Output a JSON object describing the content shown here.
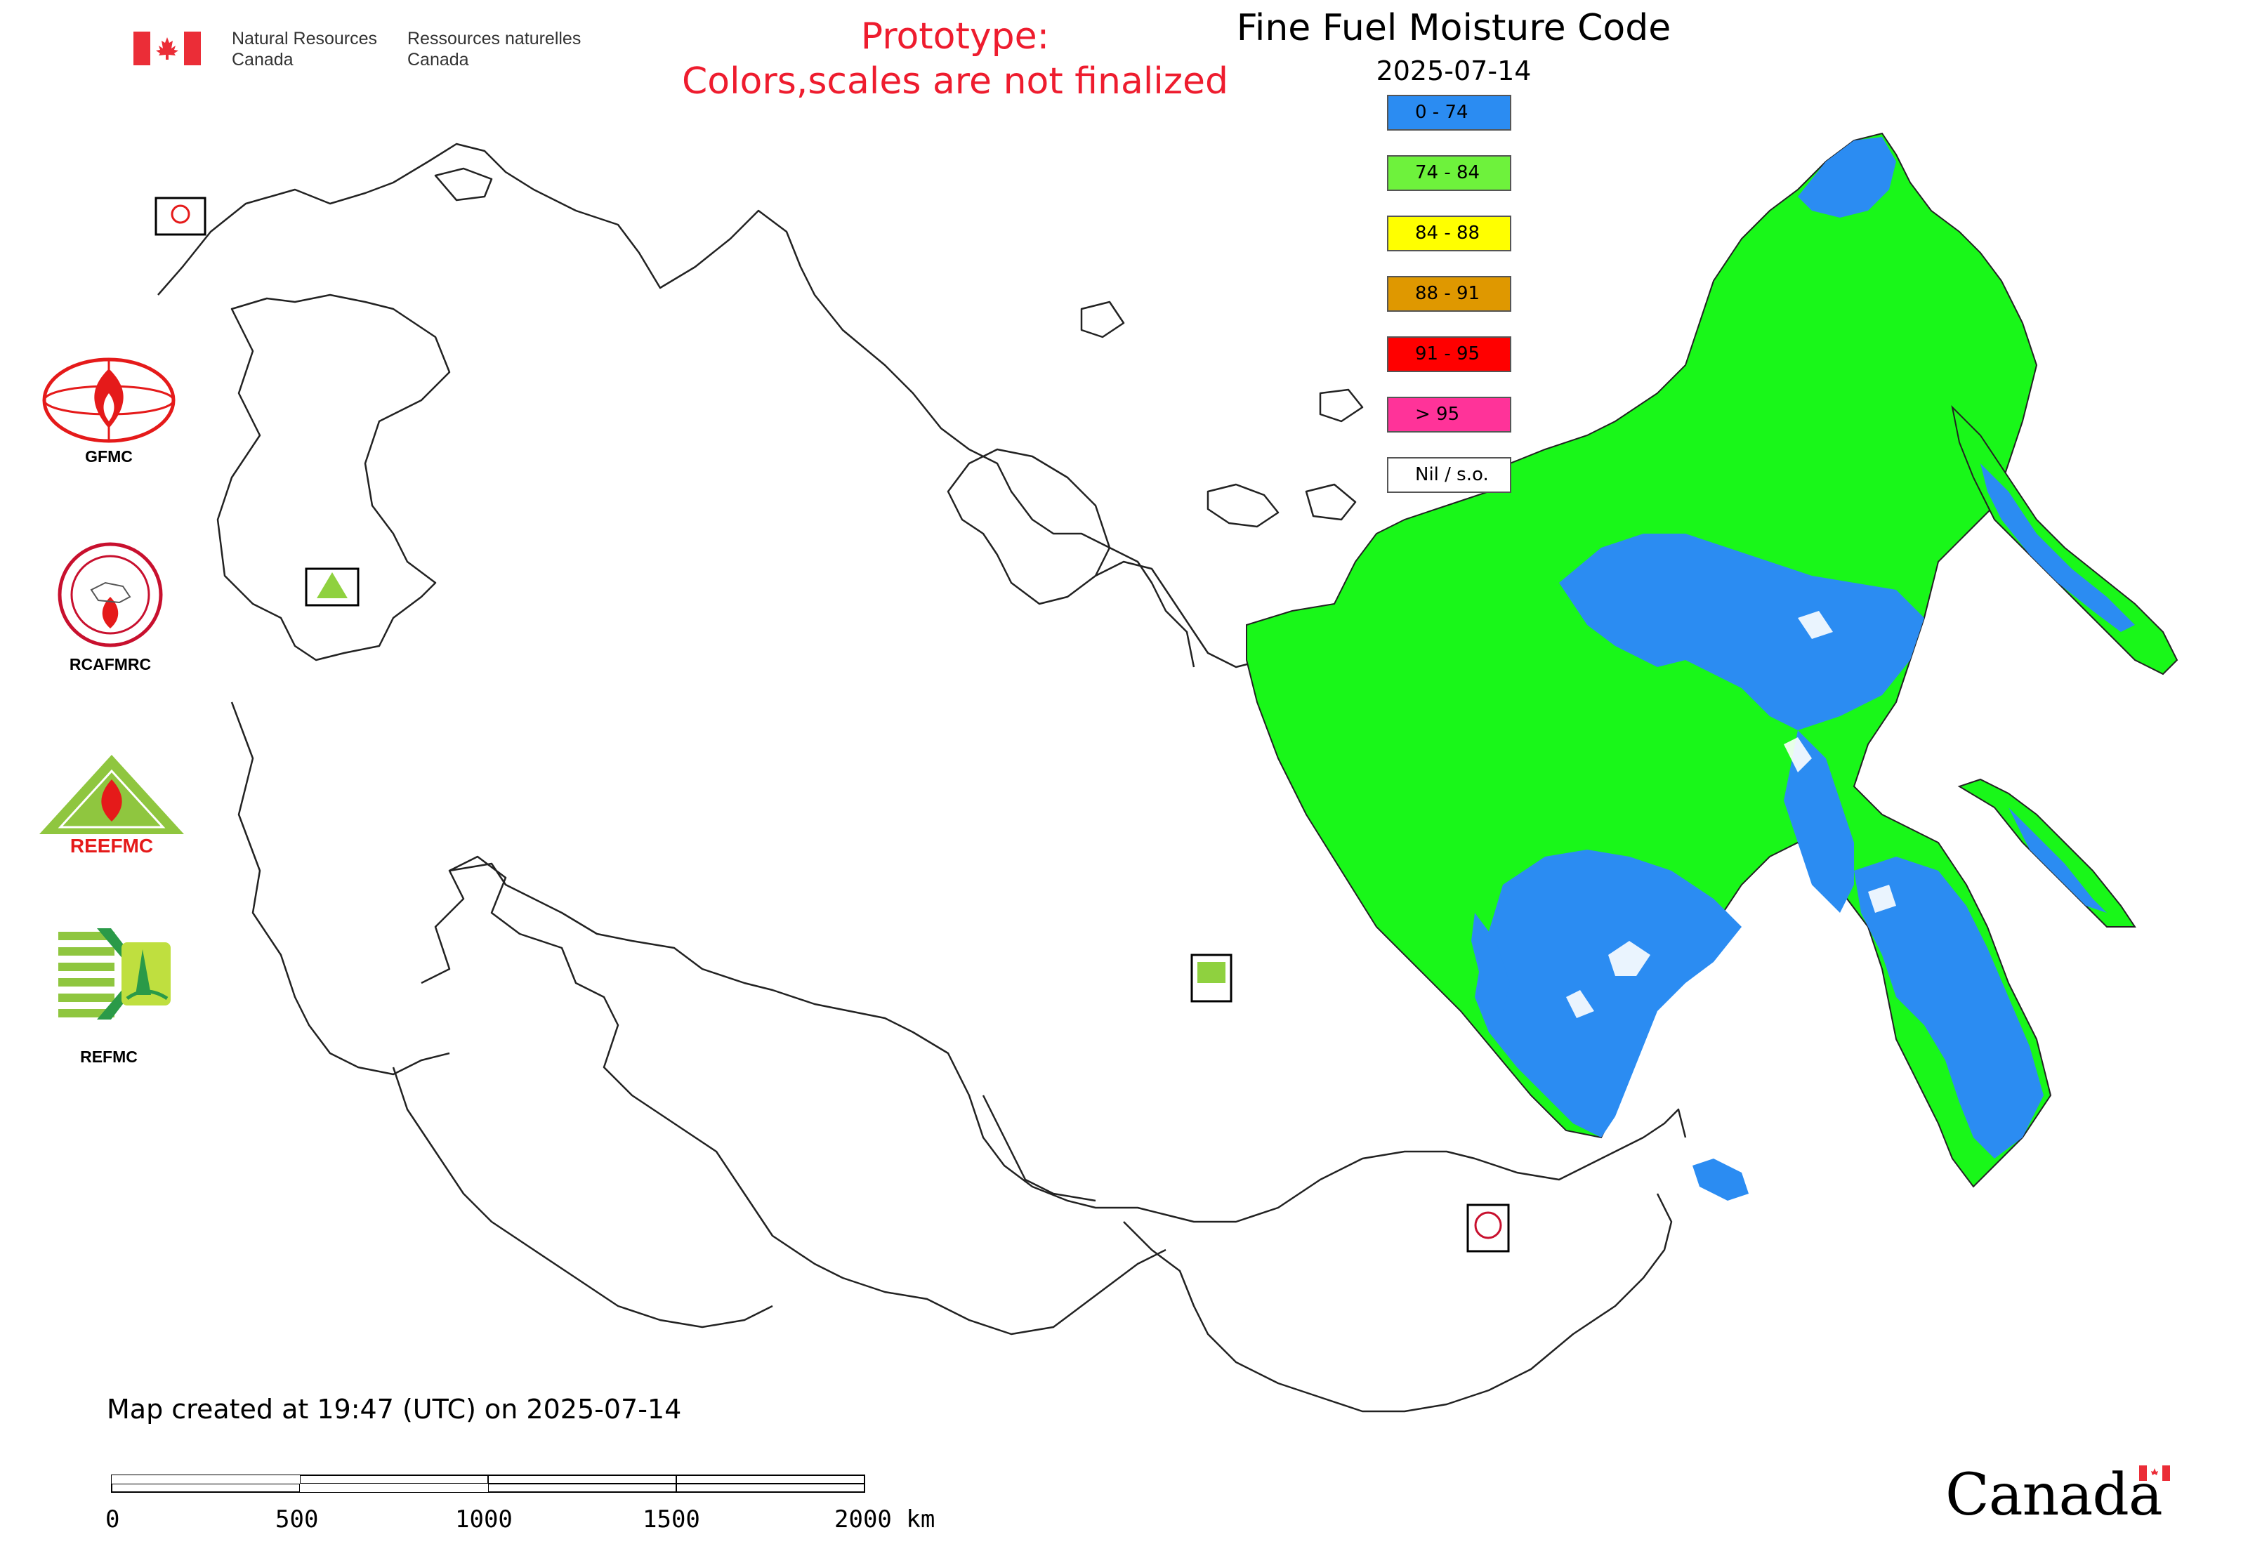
{
  "header": {
    "dept_en_line1": "Natural Resources",
    "dept_en_line2": "Canada",
    "dept_fr_line1": "Ressources naturelles",
    "dept_fr_line2": "Canada",
    "prototype_line1": "Prototype:",
    "prototype_line2": "Colors,scales are not finalized"
  },
  "map": {
    "title": "Fine Fuel Moisture Code",
    "date": "2025-07-14",
    "created_note": "Map created at 19:47 (UTC) on 2025-07-14"
  },
  "legend": [
    {
      "label": "0 - 74",
      "color": "#2b8cf2"
    },
    {
      "label": "74 - 84",
      "color": "#6ef23c"
    },
    {
      "label": "84 - 88",
      "color": "#ffff00"
    },
    {
      "label": "88 - 91",
      "color": "#df9800"
    },
    {
      "label": "91 - 95",
      "color": "#ff0000"
    },
    {
      "label": "> 95",
      "color": "#ff3399"
    },
    {
      "label": "Nil / s.o.",
      "color": "#ffffff"
    }
  ],
  "logos": {
    "gfmc": "GFMC",
    "rcafmrc": "RCAFMRC",
    "reefmc": "REEFMC",
    "refmc": "REFMC"
  },
  "scale": {
    "ticks": [
      "0",
      "500",
      "1000",
      "1500",
      "2000 km"
    ]
  },
  "footer": {
    "wordmark": "Canada"
  },
  "colors": {
    "moist": "#2b8cf2",
    "moderate": "#19f719",
    "outline": "#222222",
    "accent_red": "#ee1c2e"
  }
}
